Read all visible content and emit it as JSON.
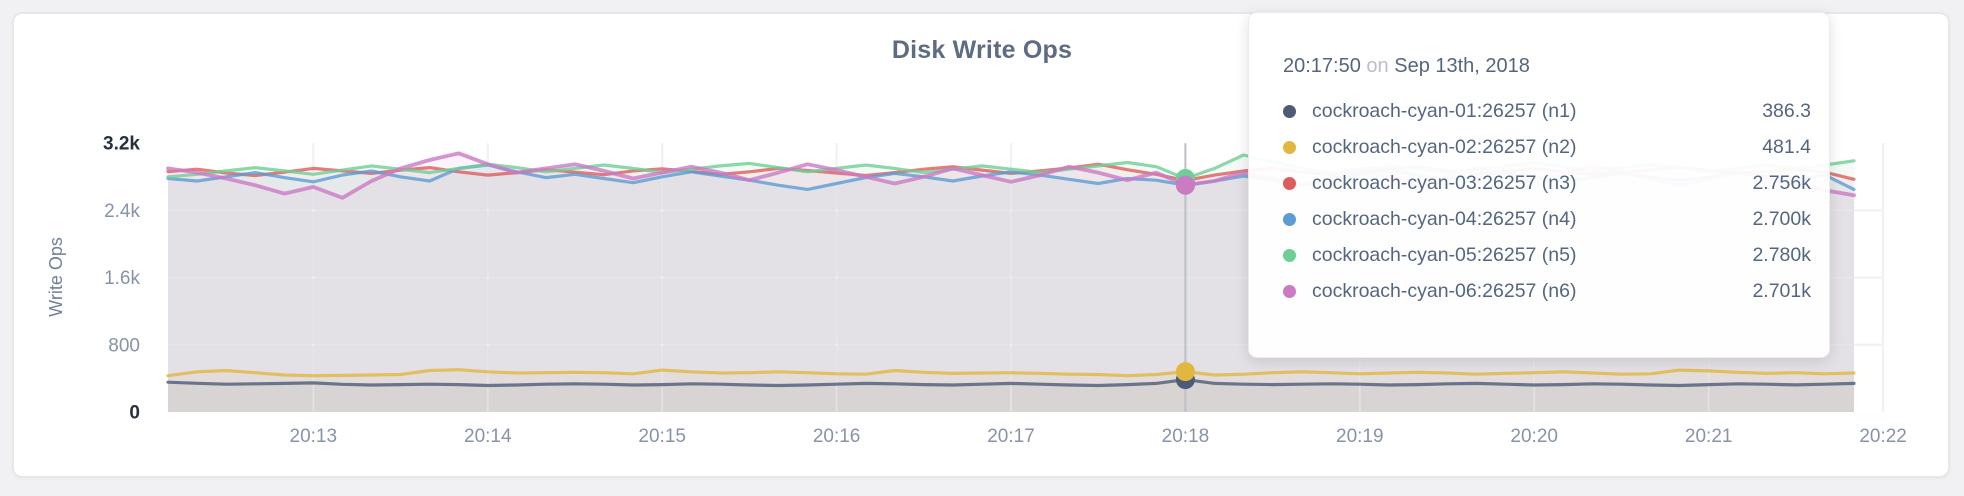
{
  "header": {
    "title": "Disk Write Ops"
  },
  "chart_data": {
    "type": "area",
    "title": "Disk Write Ops",
    "xlabel": "",
    "ylabel": "Write Ops",
    "ylim": [
      0,
      3200
    ],
    "grid": true,
    "legend_position": "tooltip",
    "y_ticks": [
      {
        "value": 0,
        "label": "0"
      },
      {
        "value": 800,
        "label": "800"
      },
      {
        "value": 1600,
        "label": "1.6k"
      },
      {
        "value": 2400,
        "label": "2.4k"
      },
      {
        "value": 3200,
        "label": "3.2k"
      }
    ],
    "x_tick_labels": [
      "20:13",
      "20:14",
      "20:15",
      "20:16",
      "20:17",
      "20:18",
      "20:19",
      "20:20",
      "20:21",
      "20:22"
    ],
    "x_tick_indices": [
      5,
      11,
      17,
      23,
      29,
      35,
      41,
      47,
      53,
      59
    ],
    "points_per_series": 59,
    "sample_interval_seconds": 10,
    "hover_index": 35,
    "series": [
      {
        "name": "cockroach-cyan-01:26257 (n1)",
        "color": "#4e5b76",
        "values": [
          355,
          342,
          331,
          336,
          341,
          346,
          330,
          321,
          326,
          331,
          326,
          316,
          321,
          331,
          336,
          331,
          321,
          326,
          336,
          331,
          321,
          316,
          321,
          331,
          341,
          336,
          326,
          321,
          331,
          341,
          331,
          321,
          316,
          326,
          341,
          386.3,
          341,
          331,
          326,
          331,
          336,
          331,
          321,
          326,
          336,
          341,
          331,
          321,
          326,
          336,
          331,
          321,
          316,
          326,
          336,
          331,
          323,
          331,
          341
        ]
      },
      {
        "name": "cockroach-cyan-02:26257 (n2)",
        "color": "#e2b740",
        "values": [
          432,
          478,
          494,
          468,
          441,
          432,
          436,
          441,
          446,
          494,
          504,
          478,
          464,
          468,
          473,
          468,
          455,
          499,
          478,
          464,
          468,
          478,
          468,
          455,
          450,
          494,
          473,
          459,
          464,
          468,
          459,
          450,
          446,
          432,
          446,
          481.4,
          441,
          450,
          468,
          478,
          468,
          455,
          464,
          473,
          464,
          450,
          459,
          468,
          478,
          464,
          450,
          455,
          499,
          489,
          473,
          459,
          468,
          455,
          464
        ]
      },
      {
        "name": "cockroach-cyan-03:26257 (n3)",
        "color": "#dd5c5c",
        "values": [
          2862,
          2890,
          2845,
          2815,
          2855,
          2900,
          2870,
          2840,
          2880,
          2910,
          2860,
          2820,
          2850,
          2885,
          2855,
          2825,
          2870,
          2895,
          2865,
          2830,
          2860,
          2900,
          2875,
          2845,
          2815,
          2850,
          2890,
          2920,
          2880,
          2840,
          2870,
          2905,
          2950,
          2885,
          2830,
          2756,
          2820,
          2870,
          2900,
          2860,
          2825,
          2855,
          2890,
          2920,
          2870,
          2835,
          2865,
          2895,
          2860,
          2830,
          2855,
          2885,
          2915,
          2875,
          2840,
          2865,
          2890,
          2855,
          2770
        ]
      },
      {
        "name": "cockroach-cyan-04:26257 (n4)",
        "color": "#5d9cd3",
        "values": [
          2780,
          2750,
          2800,
          2850,
          2790,
          2740,
          2820,
          2870,
          2800,
          2750,
          2900,
          2940,
          2860,
          2790,
          2830,
          2780,
          2730,
          2800,
          2860,
          2810,
          2760,
          2700,
          2650,
          2720,
          2790,
          2840,
          2800,
          2750,
          2810,
          2860,
          2820,
          2770,
          2720,
          2780,
          2760,
          2700,
          2750,
          2810,
          2760,
          2700,
          2760,
          2830,
          2880,
          2820,
          2770,
          2810,
          2850,
          2800,
          2750,
          2790,
          2840,
          2800,
          2760,
          2800,
          2850,
          2810,
          2770,
          2820,
          2650
        ]
      },
      {
        "name": "cockroach-cyan-05:26257 (n5)",
        "color": "#6fce96",
        "values": [
          2800,
          2830,
          2870,
          2910,
          2870,
          2830,
          2880,
          2930,
          2890,
          2850,
          2900,
          2950,
          2910,
          2860,
          2900,
          2940,
          2900,
          2850,
          2890,
          2930,
          2960,
          2910,
          2860,
          2900,
          2940,
          2900,
          2850,
          2890,
          2930,
          2890,
          2850,
          2890,
          2930,
          2970,
          2920,
          2780,
          2900,
          3060,
          2980,
          2900,
          2850,
          2890,
          2930,
          2890,
          2850,
          2890,
          2930,
          2970,
          2920,
          2870,
          2910,
          2950,
          2910,
          2860,
          2900,
          2940,
          2900,
          2940,
          2990
        ]
      },
      {
        "name": "cockroach-cyan-06:26257 (n6)",
        "color": "#cb7ac4",
        "values": [
          2900,
          2850,
          2780,
          2700,
          2600,
          2680,
          2550,
          2750,
          2900,
          3000,
          3080,
          2950,
          2850,
          2900,
          2950,
          2870,
          2780,
          2850,
          2920,
          2850,
          2760,
          2850,
          2950,
          2880,
          2800,
          2720,
          2800,
          2900,
          2820,
          2740,
          2820,
          2920,
          2850,
          2760,
          2850,
          2701,
          2750,
          2850,
          2780,
          2700,
          2780,
          2880,
          2800,
          2720,
          2800,
          2900,
          2830,
          2750,
          2830,
          2930,
          2860,
          2780,
          2700,
          2780,
          2860,
          2790,
          2710,
          2640,
          2580
        ]
      }
    ]
  },
  "tooltip": {
    "time": "20:17:50",
    "connector": "on",
    "date": "Sep 13th, 2018",
    "rows": [
      {
        "name": "cockroach-cyan-01:26257 (n1)",
        "value": "386.3",
        "color": "#4e5b76"
      },
      {
        "name": "cockroach-cyan-02:26257 (n2)",
        "value": "481.4",
        "color": "#e2b740"
      },
      {
        "name": "cockroach-cyan-03:26257 (n3)",
        "value": "2.756k",
        "color": "#dd5c5c"
      },
      {
        "name": "cockroach-cyan-04:26257 (n4)",
        "value": "2.700k",
        "color": "#5d9cd3"
      },
      {
        "name": "cockroach-cyan-05:26257 (n5)",
        "value": "2.780k",
        "color": "#6fce96"
      },
      {
        "name": "cockroach-cyan-06:26257 (n6)",
        "value": "2.701k",
        "color": "#cb7ac4"
      }
    ]
  },
  "colors": {
    "page_bg": "#f1f1f3",
    "card_bg": "#ffffff",
    "title_text": "#5d6b83",
    "axis_text_mid": "#8793a7",
    "axis_text_end": "#27303f",
    "grid_line": "#e2e2e6",
    "hover_line": "#bcc0c6"
  }
}
